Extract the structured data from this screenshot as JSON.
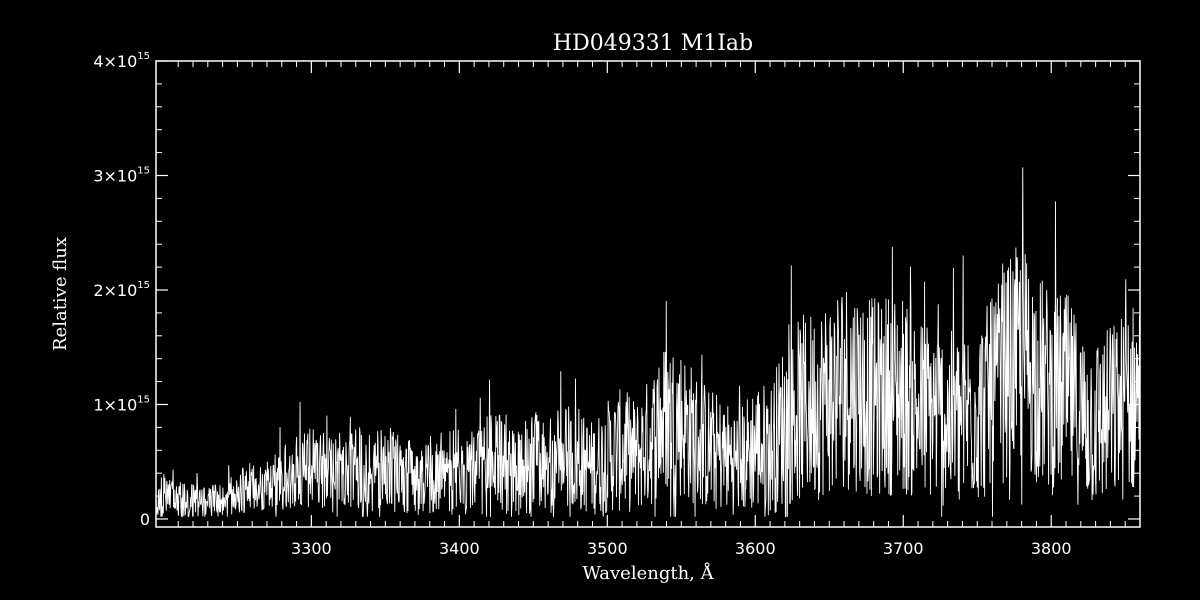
{
  "chart_data": {
    "type": "line",
    "title": "HD049331  M1Iab",
    "xlabel": "Wavelength, Å",
    "ylabel": "Relative flux",
    "xlim": [
      3195,
      3860
    ],
    "ylim": [
      -70000000000000,
      4000000000000000
    ],
    "x_ticks": [
      {
        "value": 3300,
        "label": "3300"
      },
      {
        "value": 3400,
        "label": "3400"
      },
      {
        "value": 3500,
        "label": "3500"
      },
      {
        "value": 3600,
        "label": "3600"
      },
      {
        "value": 3700,
        "label": "3700"
      },
      {
        "value": 3800,
        "label": "3800"
      }
    ],
    "y_ticks": [
      {
        "value": 0,
        "label": "0",
        "exp": ""
      },
      {
        "value": 1000000000000000,
        "label": "1×10",
        "exp": "15"
      },
      {
        "value": 2000000000000000,
        "label": "2×10",
        "exp": "15"
      },
      {
        "value": 3000000000000000,
        "label": "3×10",
        "exp": "15"
      },
      {
        "value": 4000000000000000,
        "label": "4×10",
        "exp": "15"
      }
    ],
    "grid": false,
    "colors": {
      "background": "#000000",
      "line": "#ffffff",
      "axes": "#ffffff"
    },
    "series": [
      {
        "x": [
          3195,
          3210,
          3220,
          3230,
          3240,
          3250,
          3260,
          3270,
          3280,
          3290,
          3300,
          3310,
          3320,
          3330,
          3340,
          3350,
          3360,
          3370,
          3380,
          3390,
          3400,
          3410,
          3420,
          3430,
          3440,
          3450,
          3460,
          3470,
          3480,
          3490,
          3500,
          3510,
          3520,
          3530,
          3540,
          3550,
          3560,
          3570,
          3580,
          3590,
          3600,
          3610,
          3620,
          3630,
          3640,
          3650,
          3660,
          3670,
          3680,
          3690,
          3700,
          3710,
          3720,
          3730,
          3740,
          3750,
          3760,
          3770,
          3780,
          3790,
          3800,
          3810,
          3820,
          3830,
          3840,
          3850,
          3860
        ],
        "y": [
          200000000000000,
          170000000000000,
          150000000000000,
          140000000000000,
          160000000000000,
          250000000000000,
          280000000000000,
          300000000000000,
          350000000000000,
          400000000000000,
          450000000000000,
          420000000000000,
          420000000000000,
          450000000000000,
          400000000000000,
          450000000000000,
          400000000000000,
          350000000000000,
          380000000000000,
          400000000000000,
          450000000000000,
          400000000000000,
          500000000000000,
          500000000000000,
          400000000000000,
          500000000000000,
          450000000000000,
          550000000000000,
          500000000000000,
          450000000000000,
          550000000000000,
          600000000000000,
          550000000000000,
          700000000000000,
          900000000000000,
          850000000000000,
          700000000000000,
          600000000000000,
          550000000000000,
          500000000000000,
          650000000000000,
          600000000000000,
          850000000000000,
          950000000000000,
          1000000000000000,
          1100000000000000,
          1200000000000000,
          1150000000000000,
          1050000000000000,
          1100000000000000,
          1100000000000000,
          950000000000000,
          950000000000000,
          850000000000000,
          900000000000000,
          950000000000000,
          1050000000000000,
          1300000000000000,
          1450000000000000,
          1250000000000000,
          1100000000000000,
          1100000000000000,
          900000000000000,
          850000000000000,
          900000000000000,
          1000000000000000,
          1100000000000000
        ],
        "noise": [
          200000000000000,
          170000000000000,
          150000000000000,
          140000000000000,
          160000000000000,
          200000000000000,
          220000000000000,
          240000000000000,
          280000000000000,
          320000000000000,
          350000000000000,
          330000000000000,
          350000000000000,
          380000000000000,
          350000000000000,
          380000000000000,
          350000000000000,
          320000000000000,
          350000000000000,
          380000000000000,
          400000000000000,
          380000000000000,
          450000000000000,
          450000000000000,
          380000000000000,
          450000000000000,
          420000000000000,
          480000000000000,
          450000000000000,
          420000000000000,
          500000000000000,
          550000000000000,
          500000000000000,
          600000000000000,
          700000000000000,
          680000000000000,
          600000000000000,
          550000000000000,
          500000000000000,
          480000000000000,
          600000000000000,
          580000000000000,
          750000000000000,
          820000000000000,
          850000000000000,
          900000000000000,
          950000000000000,
          920000000000000,
          880000000000000,
          900000000000000,
          900000000000000,
          820000000000000,
          820000000000000,
          780000000000000,
          800000000000000,
          820000000000000,
          880000000000000,
          950000000000000,
          1000000000000000,
          950000000000000,
          900000000000000,
          900000000000000,
          800000000000000,
          780000000000000,
          800000000000000,
          850000000000000,
          880000000000000
        ]
      }
    ]
  }
}
